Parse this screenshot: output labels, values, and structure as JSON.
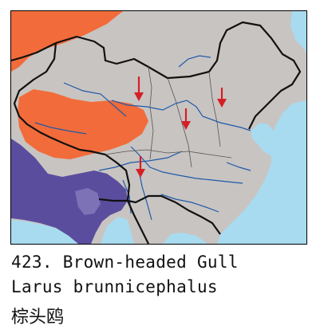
{
  "caption": {
    "number_title": "423. Brown-headed Gull",
    "scientific_name": "Larus brunnicephalus",
    "chinese_name": "棕头鸥"
  },
  "legend_colors": {
    "land": "#c8c4c2",
    "sea": "#a8dbef",
    "breeding_range": "#f26b3a",
    "wintering_range": "#5b4d9e",
    "migration_arrow": "#d41f26",
    "border": "#111111",
    "river": "#1e5aa8"
  },
  "migration_arrows": {
    "count": 4,
    "direction": "south",
    "icon": "down-arrow-icon"
  }
}
